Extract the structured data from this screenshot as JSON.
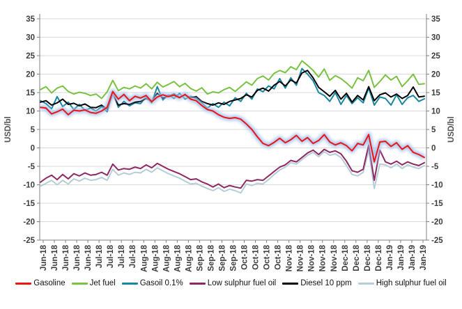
{
  "chart_data": {
    "type": "line",
    "title": "",
    "ylabel_left": "USD/bl",
    "ylabel_right": "USD/bl",
    "ylim": [
      -25,
      35
    ],
    "ytick_step": 5,
    "y_ticks": [
      35,
      30,
      25,
      20,
      15,
      10,
      5,
      0,
      -5,
      -10,
      -15,
      -20,
      -25
    ],
    "grid": true,
    "legend_position": "bottom",
    "axis_color": "#808080",
    "grid_color": "#d9d9d9",
    "x_labels": [
      "Jun-18",
      "Jun-18",
      "Jun-18",
      "Jun-18",
      "Jun-18",
      "Jul-18",
      "Jul-18",
      "Jul-18",
      "Jul-18",
      "Aug-18",
      "Aug-18",
      "Aug-18",
      "Aug-18",
      "Aug-18",
      "Sep-18",
      "Sep-18",
      "Sep-18",
      "Sep-18",
      "Oct-18",
      "Oct-18",
      "Oct-18",
      "Oct-18",
      "Nov-18",
      "Nov-18",
      "Nov-18",
      "Nov-18",
      "Nov-18",
      "Dec-18",
      "Dec-18",
      "Dec-18",
      "Dec-18",
      "Jan-19",
      "Jan-19",
      "Jan-19",
      "Jan-19"
    ],
    "series": [
      {
        "name": "Gasoline",
        "color": "#ef1414",
        "glow": "#a6c3ee",
        "values": [
          11.0,
          10.8,
          9.2,
          9.8,
          10.5,
          9.0,
          10.2,
          10.0,
          10.3,
          9.6,
          9.4,
          10.0,
          11.0,
          15.3,
          13.2,
          14.5,
          12.8,
          14.0,
          13.5,
          14.2,
          12.5,
          13.8,
          14.4,
          13.9,
          14.3,
          13.6,
          14.5,
          13.2,
          12.8,
          11.5,
          10.4,
          10.0,
          9.0,
          8.3,
          8.0,
          8.2,
          7.8,
          6.5,
          5.0,
          3.0,
          1.2,
          0.6,
          1.5,
          2.6,
          1.4,
          2.2,
          3.4,
          1.8,
          2.8,
          1.2,
          2.0,
          3.6,
          1.6,
          0.8,
          1.4,
          0.6,
          -0.8,
          1.2,
          0.8,
          3.6,
          -3.8,
          1.6,
          1.8,
          0.4,
          1.4,
          -0.4,
          0.6,
          -1.2,
          -1.8,
          -2.6
        ]
      },
      {
        "name": "Jet fuel",
        "color": "#79c143",
        "values": [
          15.8,
          16.6,
          14.9,
          16.2,
          16.8,
          15.3,
          14.6,
          15.1,
          14.8,
          14.2,
          14.6,
          13.4,
          15.2,
          18.3,
          15.5,
          16.4,
          16.0,
          16.8,
          16.2,
          17.4,
          16.0,
          17.8,
          16.5,
          17.2,
          18.0,
          16.6,
          17.5,
          16.1,
          15.4,
          16.3,
          14.6,
          15.2,
          14.9,
          15.8,
          16.4,
          15.3,
          16.6,
          17.9,
          17.0,
          18.8,
          19.5,
          18.4,
          20.2,
          21.0,
          20.4,
          22.0,
          21.2,
          23.6,
          22.4,
          21.0,
          19.2,
          21.4,
          18.3,
          19.6,
          18.8,
          17.6,
          16.2,
          19.0,
          18.2,
          21.0,
          16.4,
          18.0,
          19.8,
          18.4,
          19.4,
          16.6,
          18.2,
          20.0,
          17.2,
          17.4
        ]
      },
      {
        "name": "Gasoil 0.1%",
        "color": "#1887a2",
        "values": [
          12.8,
          12.0,
          10.6,
          13.9,
          11.2,
          12.4,
          10.4,
          11.8,
          10.2,
          10.8,
          10.0,
          11.2,
          9.8,
          15.2,
          11.0,
          12.6,
          11.4,
          12.2,
          12.0,
          13.8,
          12.2,
          16.6,
          13.0,
          14.4,
          13.4,
          14.8,
          13.2,
          14.0,
          13.4,
          12.2,
          10.8,
          12.0,
          11.0,
          12.4,
          11.4,
          13.6,
          12.6,
          14.8,
          13.2,
          16.0,
          15.2,
          16.8,
          16.0,
          18.8,
          16.2,
          19.0,
          17.0,
          21.5,
          20.0,
          18.2,
          15.0,
          14.2,
          12.6,
          15.0,
          11.8,
          14.2,
          12.0,
          13.6,
          12.2,
          16.2,
          11.6,
          13.8,
          13.4,
          11.6,
          14.4,
          11.8,
          13.6,
          14.2,
          12.6,
          13.3
        ]
      },
      {
        "name": "Low sulphur fuel oil",
        "color": "#8e2763",
        "values": [
          -9.3,
          -8.2,
          -7.4,
          -8.6,
          -7.2,
          -8.4,
          -7.0,
          -7.6,
          -6.8,
          -7.4,
          -7.2,
          -6.6,
          -7.4,
          -4.4,
          -6.0,
          -5.6,
          -5.8,
          -5.2,
          -5.6,
          -4.6,
          -5.4,
          -4.2,
          -5.0,
          -5.8,
          -6.4,
          -7.0,
          -7.8,
          -8.6,
          -8.4,
          -9.2,
          -9.8,
          -10.6,
          -9.8,
          -10.8,
          -10.2,
          -10.6,
          -10.9,
          -8.8,
          -9.0,
          -8.6,
          -8.8,
          -7.6,
          -6.4,
          -5.2,
          -4.6,
          -3.4,
          -3.8,
          -2.6,
          -1.4,
          -0.6,
          -1.8,
          -0.4,
          -1.2,
          -0.8,
          -1.6,
          -3.6,
          -6.2,
          -6.6,
          -5.8,
          0.8,
          -8.8,
          -0.6,
          -3.8,
          -4.4,
          -3.6,
          -4.6,
          -3.8,
          -4.4,
          -4.8,
          -4.0
        ]
      },
      {
        "name": "Diesel 10 ppm",
        "color": "#000000",
        "values": [
          12.4,
          12.8,
          11.6,
          12.2,
          13.2,
          11.8,
          12.1,
          11.4,
          11.9,
          11.0,
          10.9,
          11.6,
          10.5,
          14.7,
          11.6,
          12.0,
          11.8,
          12.4,
          12.6,
          13.4,
          12.8,
          14.8,
          13.5,
          14.0,
          14.6,
          13.8,
          14.3,
          13.6,
          13.9,
          12.6,
          12.0,
          11.6,
          12.2,
          11.8,
          12.6,
          13.0,
          13.4,
          14.4,
          13.8,
          15.6,
          16.2,
          15.4,
          17.0,
          18.0,
          16.8,
          18.4,
          17.6,
          20.3,
          21.0,
          19.0,
          16.4,
          15.2,
          14.0,
          15.6,
          13.2,
          14.8,
          12.4,
          14.2,
          13.0,
          16.6,
          12.8,
          14.4,
          14.9,
          13.8,
          14.6,
          13.4,
          14.2,
          16.5,
          13.8,
          14.0
        ]
      },
      {
        "name": "High sulphur fuel oil",
        "color": "#b5cdd7",
        "values": [
          -10.4,
          -9.6,
          -8.8,
          -10.0,
          -8.8,
          -9.8,
          -8.4,
          -9.0,
          -8.2,
          -8.8,
          -8.6,
          -8.0,
          -8.8,
          -5.8,
          -7.4,
          -6.8,
          -7.2,
          -6.6,
          -6.8,
          -5.8,
          -6.6,
          -5.4,
          -6.2,
          -7.0,
          -7.6,
          -8.2,
          -9.0,
          -9.8,
          -9.6,
          -10.4,
          -11.0,
          -11.6,
          -10.8,
          -11.8,
          -11.2,
          -11.6,
          -12.2,
          -9.8,
          -10.2,
          -9.6,
          -9.8,
          -8.6,
          -7.2,
          -6.0,
          -5.2,
          -4.0,
          -4.4,
          -3.2,
          -2.0,
          -1.2,
          -2.4,
          -1.0,
          -2.0,
          -1.6,
          -2.6,
          -4.8,
          -7.2,
          -7.6,
          -6.6,
          -0.6,
          -11.0,
          -4.4,
          -4.6,
          -5.4,
          -4.4,
          -5.6,
          -4.6,
          -5.2,
          -5.6,
          -4.8
        ]
      }
    ],
    "draw_order": [
      "High sulphur fuel oil",
      "Low sulphur fuel oil",
      "Gasoil 0.1%",
      "Jet fuel",
      "Diesel 10 ppm",
      "Gasoline"
    ]
  }
}
